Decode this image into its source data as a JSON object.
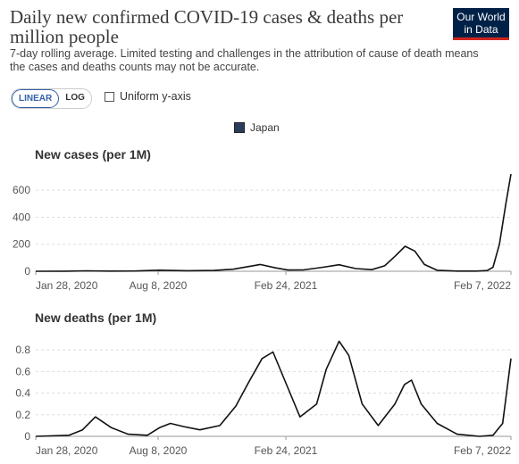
{
  "header": {
    "title": "Daily new confirmed COVID-19 cases & deaths per million people",
    "subtitle": "7-day rolling average. Limited testing and challenges in the attribution of cause of death means the cases and deaths counts may not be accurate.",
    "logo_line1": "Our World",
    "logo_line2": "in Data"
  },
  "controls": {
    "linear_label": "LINEAR",
    "log_label": "LOG",
    "scale_selected": "LINEAR",
    "uniform_label": "Uniform y-axis",
    "uniform_checked": false
  },
  "legend": {
    "label": "Japan",
    "color": "#2b3d5c"
  },
  "colors": {
    "line": "#111111",
    "grid": "#dddddd"
  },
  "chart_data": [
    {
      "type": "line",
      "title": "New cases (per 1M)",
      "x_tick_labels": [
        "Jan 28, 2020",
        "Aug 8, 2020",
        "Feb 24, 2021",
        "Feb 7, 2022"
      ],
      "y_ticks": [
        0,
        200,
        400,
        600
      ],
      "ylim": [
        0,
        720
      ],
      "grid": true,
      "series": [
        {
          "name": "Japan",
          "x": [
            "2020-01-28",
            "2020-03-15",
            "2020-04-15",
            "2020-05-20",
            "2020-07-01",
            "2020-08-08",
            "2020-09-20",
            "2020-11-01",
            "2020-12-01",
            "2021-01-12",
            "2021-02-05",
            "2021-02-24",
            "2021-03-20",
            "2021-04-20",
            "2021-05-15",
            "2021-06-10",
            "2021-07-05",
            "2021-07-25",
            "2021-08-10",
            "2021-08-26",
            "2021-09-10",
            "2021-09-25",
            "2021-10-15",
            "2021-11-15",
            "2021-12-15",
            "2022-01-01",
            "2022-01-10",
            "2022-01-20",
            "2022-01-30",
            "2022-02-07"
          ],
          "y": [
            0,
            0.5,
            3,
            1,
            2,
            8,
            4,
            6,
            15,
            50,
            25,
            9,
            10,
            30,
            48,
            20,
            12,
            40,
            110,
            185,
            150,
            50,
            7,
            1,
            1,
            5,
            30,
            200,
            500,
            720
          ]
        }
      ]
    },
    {
      "type": "line",
      "title": "New deaths (per 1M)",
      "x_tick_labels": [
        "Jan 28, 2020",
        "Aug 8, 2020",
        "Feb 24, 2021",
        "Feb 7, 2022"
      ],
      "y_ticks": [
        0,
        0.2,
        0.4,
        0.6,
        0.8
      ],
      "ylim": [
        0,
        0.9
      ],
      "grid": true,
      "series": [
        {
          "name": "Japan",
          "x": [
            "2020-01-28",
            "2020-03-20",
            "2020-04-10",
            "2020-04-30",
            "2020-05-25",
            "2020-06-20",
            "2020-07-20",
            "2020-08-08",
            "2020-08-25",
            "2020-09-15",
            "2020-10-10",
            "2020-11-10",
            "2020-12-05",
            "2020-12-25",
            "2021-01-15",
            "2021-02-01",
            "2021-02-24",
            "2021-03-15",
            "2021-04-10",
            "2021-04-25",
            "2021-05-15",
            "2021-05-30",
            "2021-06-20",
            "2021-07-15",
            "2021-08-10",
            "2021-08-25",
            "2021-09-05",
            "2021-09-20",
            "2021-10-15",
            "2021-11-15",
            "2021-12-20",
            "2022-01-10",
            "2022-01-25",
            "2022-02-07"
          ],
          "y": [
            0,
            0.01,
            0.06,
            0.18,
            0.08,
            0.02,
            0.01,
            0.08,
            0.12,
            0.09,
            0.06,
            0.1,
            0.28,
            0.5,
            0.72,
            0.78,
            0.45,
            0.18,
            0.3,
            0.62,
            0.88,
            0.75,
            0.3,
            0.1,
            0.3,
            0.48,
            0.52,
            0.3,
            0.12,
            0.02,
            0.0,
            0.01,
            0.12,
            0.72
          ]
        }
      ]
    }
  ]
}
